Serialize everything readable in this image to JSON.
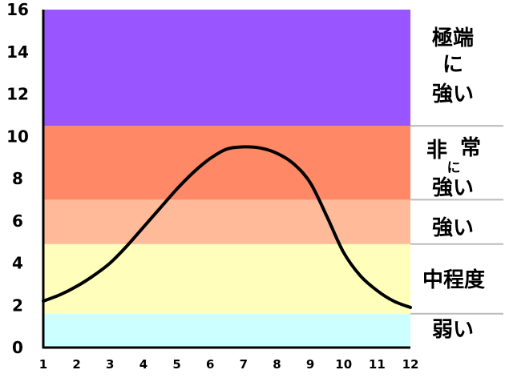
{
  "chart_data": {
    "type": "line",
    "x": [
      1,
      1.5,
      2,
      2.5,
      3,
      3.5,
      4,
      4.5,
      5,
      5.5,
      6,
      6.5,
      7,
      7.5,
      8,
      8.5,
      9,
      9.5,
      10,
      10.5,
      11,
      11.5,
      12
    ],
    "series": [
      {
        "values": [
          2.2,
          2.5,
          2.9,
          3.4,
          4.0,
          4.8,
          5.7,
          6.6,
          7.5,
          8.3,
          8.95,
          9.4,
          9.5,
          9.45,
          9.2,
          8.7,
          7.8,
          6.2,
          4.5,
          3.4,
          2.7,
          2.2,
          1.9
        ],
        "color": "#000000"
      }
    ],
    "xticks": [
      "1",
      "2",
      "3",
      "4",
      "5",
      "6",
      "7",
      "8",
      "9",
      "10",
      "11",
      "12"
    ],
    "yticks": [
      "0",
      "2",
      "4",
      "6",
      "8",
      "10",
      "12",
      "14",
      "16"
    ],
    "xlim": [
      1,
      12
    ],
    "ylim": [
      0,
      16
    ],
    "bands": [
      {
        "from": 0,
        "to": 1.6,
        "color": "#ccffff",
        "label": "弱い"
      },
      {
        "from": 1.6,
        "to": 4.9,
        "color": "#ffffbb",
        "label": "中程度"
      },
      {
        "from": 4.9,
        "to": 7.0,
        "color": "#ffbb99",
        "label": "強い"
      },
      {
        "from": 7.0,
        "to": 10.5,
        "color": "#ff8866",
        "label": "非常に強い"
      },
      {
        "from": 10.5,
        "to": 16,
        "color": "#9955ff",
        "label": "極端に強い"
      }
    ],
    "title": "",
    "xlabel": "",
    "ylabel": ""
  },
  "band_labels": {
    "weak": "弱い",
    "moderate": "中程度",
    "strong": "強い",
    "very_strong_1": "非",
    "very_strong_2": "常",
    "very_strong_3": "に",
    "very_strong_4": "強い",
    "extreme_1": "極端",
    "extreme_2": "に",
    "extreme_3": "強い"
  },
  "colors": {
    "divider": "#bbbbbb",
    "axis": "#000000"
  }
}
